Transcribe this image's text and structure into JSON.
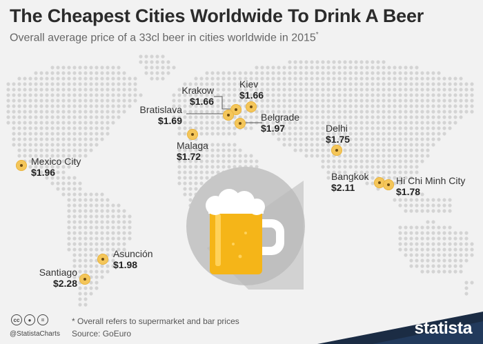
{
  "header": {
    "title": "The Cheapest Cities Worldwide To Drink A Beer",
    "subtitle": "Overall average price of a 33cl beer in cities worldwide in 2015",
    "subtitle_mark": "*"
  },
  "cities": [
    {
      "id": "kiev",
      "name": "Kiev",
      "price": "$1.66"
    },
    {
      "id": "krakow",
      "name": "Krakow",
      "price": "$1.66"
    },
    {
      "id": "bratislava",
      "name": "Bratislava",
      "price": "$1.69"
    },
    {
      "id": "belgrade",
      "name": "Belgrade",
      "price": "$1.97"
    },
    {
      "id": "malaga",
      "name": "Malaga",
      "price": "$1.72"
    },
    {
      "id": "delhi",
      "name": "Delhi",
      "price": "$1.75"
    },
    {
      "id": "mexico-city",
      "name": "Mexico City",
      "price": "$1.96"
    },
    {
      "id": "bangkok",
      "name": "Bangkok",
      "price": "$2.11"
    },
    {
      "id": "hcmc",
      "name": "Hi Chi Minh City",
      "price": "$1.78"
    },
    {
      "id": "asuncion",
      "name": "Asunción",
      "price": "$1.98"
    },
    {
      "id": "santiago",
      "name": "Santiago",
      "price": "$2.28"
    }
  ],
  "footer": {
    "note": "* Overall refers to supermarket and bar prices",
    "source": "Source: GoEuro",
    "handle": "@StatistaCharts",
    "brand": "statista"
  },
  "icons": {
    "license": [
      "cc-icon",
      "attribution-icon",
      "equals-icon"
    ],
    "center": "beer-mug-icon"
  },
  "colors": {
    "background": "#f2f2f2",
    "map_dots": "#d4d4d4",
    "marker": "#f4c65a",
    "beer_circle": "#c7c7c7",
    "beer": "#f5b518",
    "brand_band": "#1b2c44"
  }
}
